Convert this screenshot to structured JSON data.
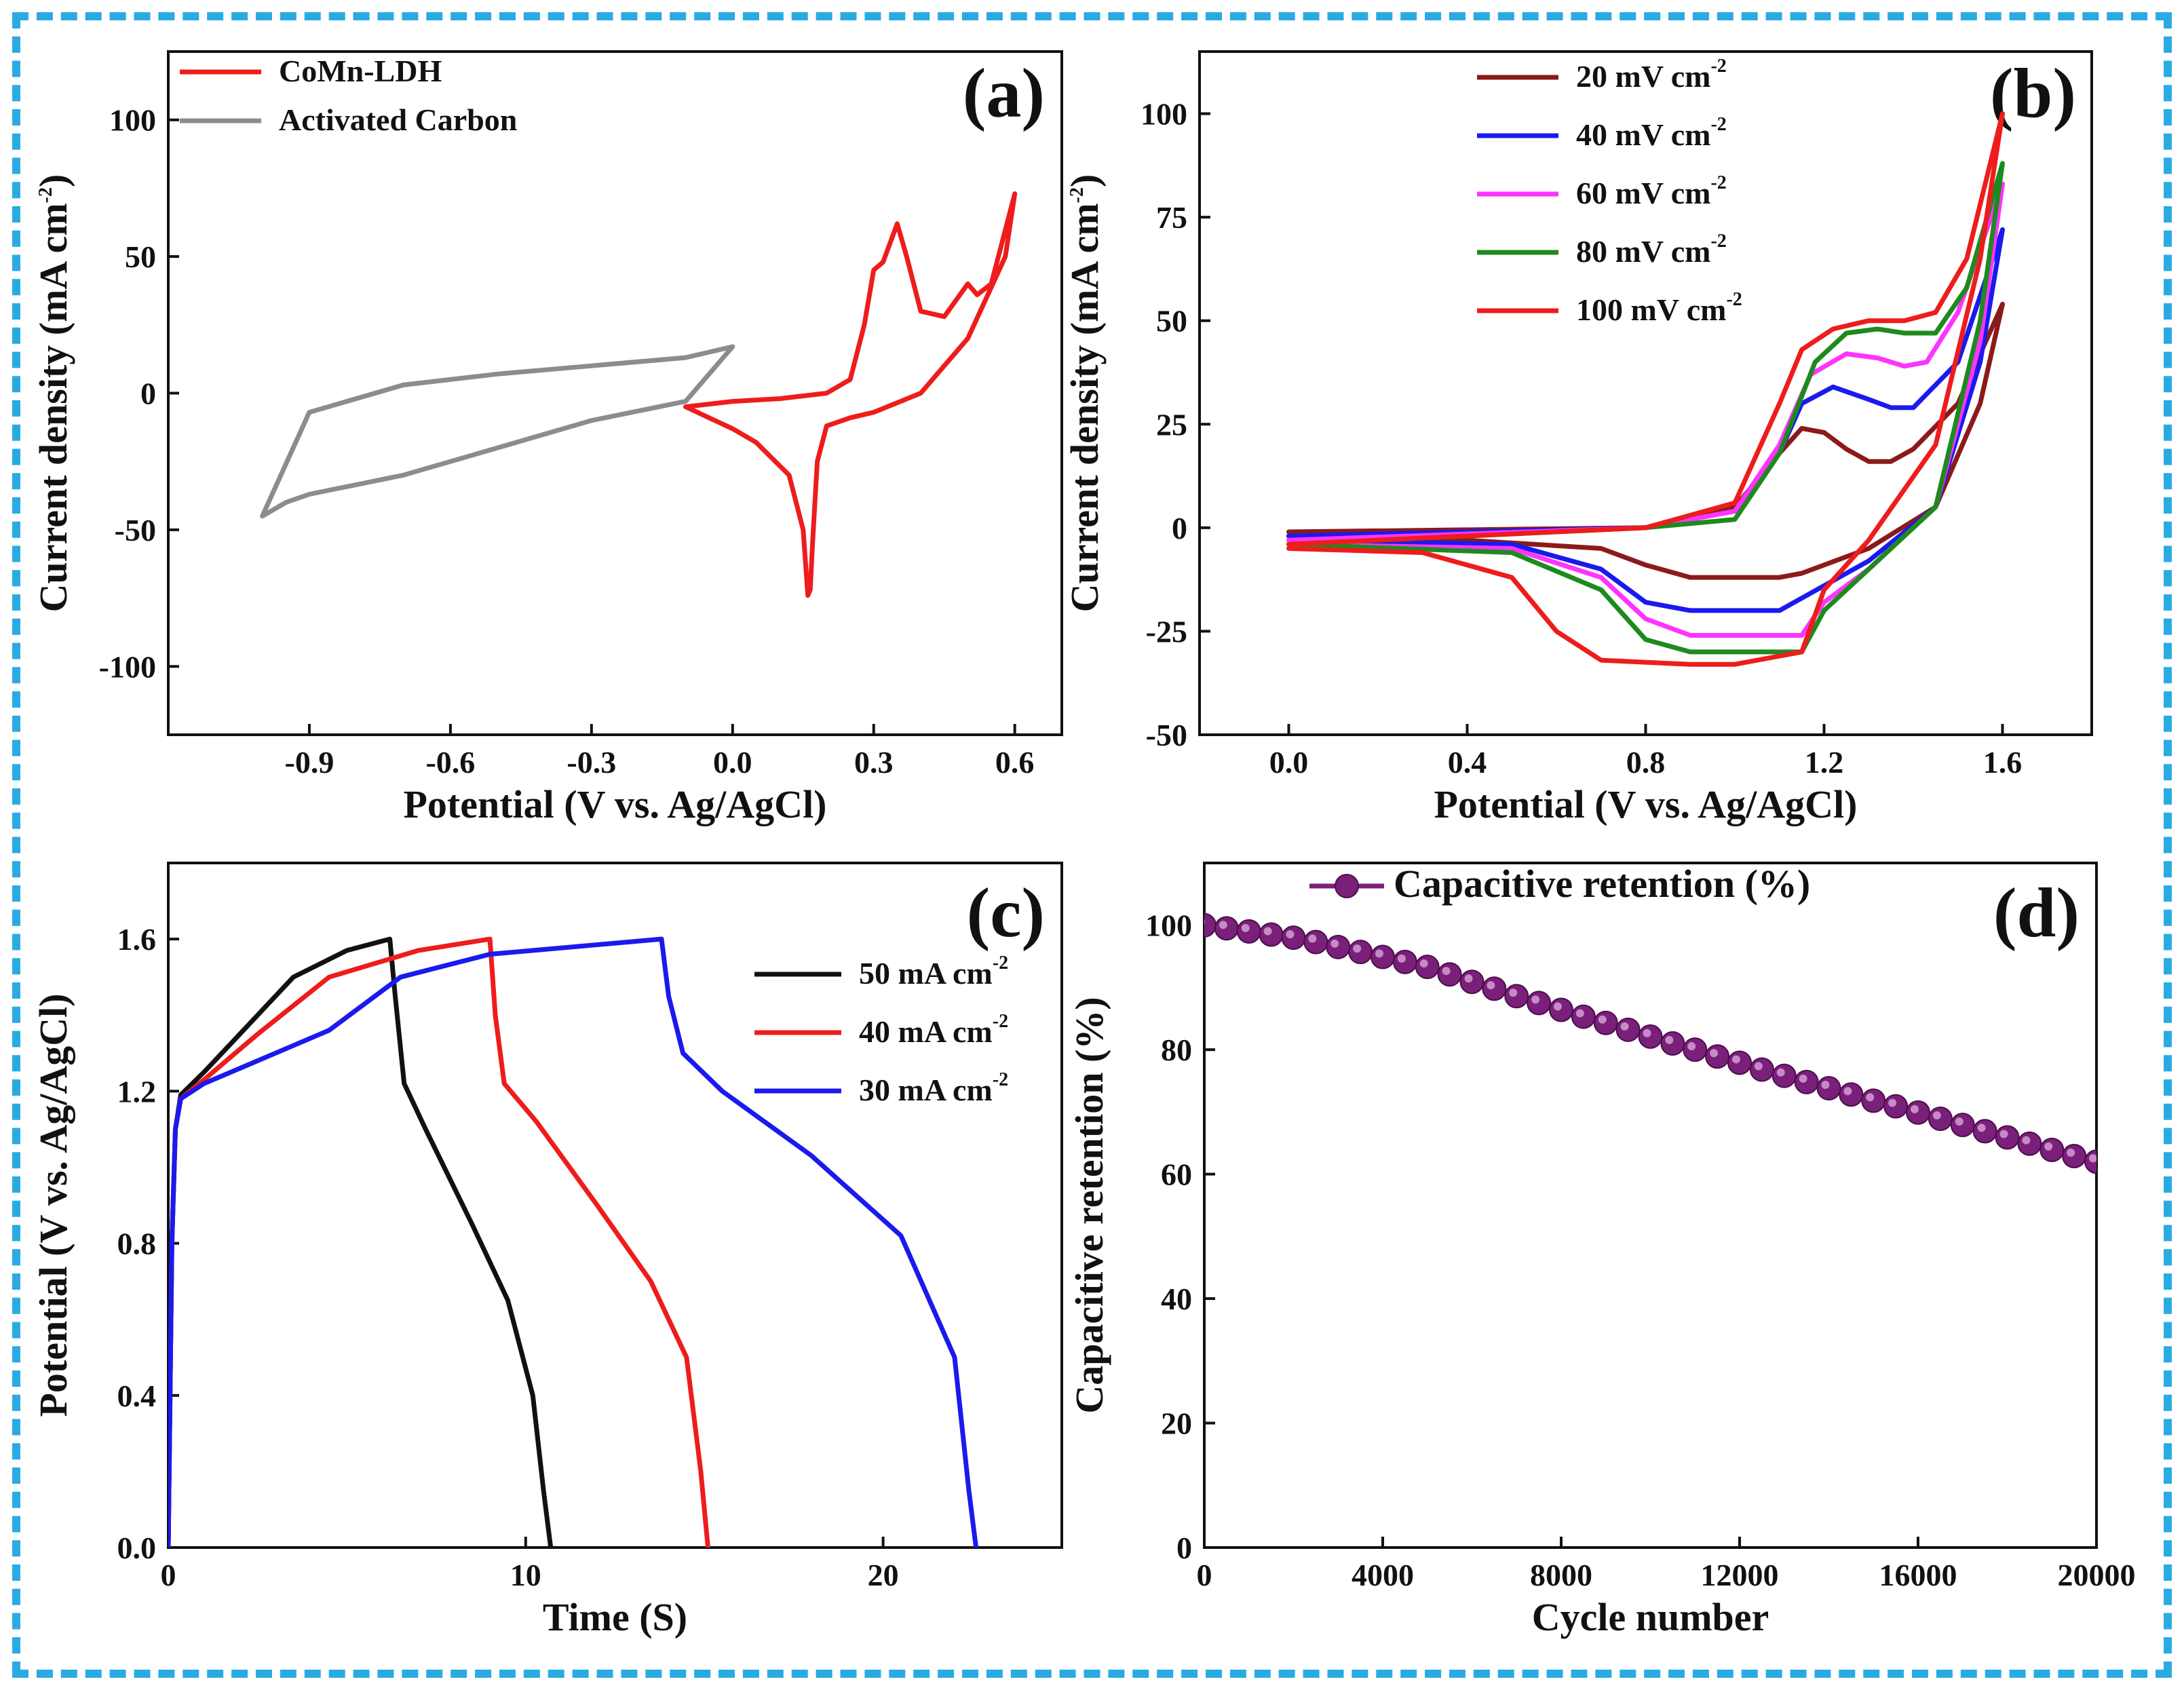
{
  "frame": {
    "border_color": "#29abe2"
  },
  "chart_data": [
    {
      "id": "a",
      "panel_label": "(a)",
      "type": "line",
      "xlabel": "Potential (V vs. Ag/AgCl)",
      "ylabel": "Current density (mA cm",
      "ylabel_sup": "-2",
      "ylabel_close": ")",
      "xlim": [
        -1.2,
        0.7
      ],
      "ylim": [
        -125,
        125
      ],
      "xticks": [
        -0.9,
        -0.6,
        -0.3,
        0.0,
        0.3,
        0.6
      ],
      "xtick_labels": [
        "-0.9",
        "-0.6",
        "-0.3",
        "0.0",
        "0.3",
        "0.6"
      ],
      "yticks": [
        -100,
        -50,
        0,
        50,
        100
      ],
      "ytick_labels": [
        "-100",
        "-50",
        "0",
        "50",
        "100"
      ],
      "legend": [
        {
          "name": "CoMn-LDH",
          "sup": "",
          "color": "#ee1c1c"
        },
        {
          "name": "Activated Carbon",
          "sup": "",
          "color": "#8c8c8c"
        }
      ],
      "series": [
        {
          "name": "CoMn-LDH",
          "color": "#ee1c1c",
          "x": [
            -0.1,
            0.0,
            0.1,
            0.2,
            0.25,
            0.28,
            0.3,
            0.32,
            0.35,
            0.37,
            0.4,
            0.45,
            0.5,
            0.52,
            0.55,
            0.6,
            0.58,
            0.5,
            0.4,
            0.3,
            0.25,
            0.2,
            0.18,
            0.17,
            0.165,
            0.16,
            0.15,
            0.12,
            0.05,
            0.0,
            -0.05,
            -0.1
          ],
          "y": [
            -5,
            -3,
            -2,
            0,
            5,
            25,
            45,
            48,
            62,
            50,
            30,
            28,
            40,
            36,
            40,
            73,
            50,
            20,
            0,
            -7,
            -9,
            -12,
            -25,
            -55,
            -72,
            -74,
            -50,
            -30,
            -18,
            -13,
            -9,
            -5
          ]
        },
        {
          "name": "Activated Carbon",
          "color": "#8c8c8c",
          "x": [
            0.0,
            -0.1,
            -0.3,
            -0.5,
            -0.7,
            -0.9,
            -0.95,
            -1.0,
            -0.9,
            -0.7,
            -0.5,
            -0.3,
            -0.1,
            0.0
          ],
          "y": [
            17,
            -3,
            -10,
            -20,
            -30,
            -37,
            -40,
            -45,
            -7,
            3,
            7,
            10,
            13,
            17
          ]
        }
      ]
    },
    {
      "id": "b",
      "panel_label": "(b)",
      "type": "line",
      "xlabel": "Potential (V vs. Ag/AgCl)",
      "ylabel": "Current density (mA cm",
      "ylabel_sup": "-2",
      "ylabel_close": ")",
      "xlim": [
        -0.2,
        1.8
      ],
      "ylim": [
        -50,
        115
      ],
      "xticks": [
        0.0,
        0.4,
        0.8,
        1.2,
        1.6
      ],
      "xtick_labels": [
        "0.0",
        "0.4",
        "0.8",
        "1.2",
        "1.6"
      ],
      "yticks": [
        -50,
        -25,
        0,
        25,
        50,
        75,
        100
      ],
      "ytick_labels": [
        "-50",
        "-25",
        "0",
        "25",
        "50",
        "75",
        "100"
      ],
      "legend": [
        {
          "name": "20 mV cm",
          "sup": "-2",
          "color": "#8b1a1a"
        },
        {
          "name": "40 mV cm",
          "sup": "-2",
          "color": "#1a1aee"
        },
        {
          "name": "60 mV cm",
          "sup": "-2",
          "color": "#ff33ff"
        },
        {
          "name": "80 mV cm",
          "sup": "-2",
          "color": "#1e8a1e"
        },
        {
          "name": "100 mV cm",
          "sup": "-2",
          "color": "#ee1c1c"
        }
      ],
      "series": [
        {
          "name": "20 mV cm-2",
          "color": "#8b1a1a",
          "x": [
            0,
            0.8,
            1.0,
            1.1,
            1.15,
            1.2,
            1.25,
            1.3,
            1.35,
            1.4,
            1.5,
            1.6,
            1.55,
            1.45,
            1.3,
            1.15,
            1.1,
            1.0,
            0.9,
            0.8,
            0.7,
            0.4,
            0
          ],
          "y": [
            -1,
            0,
            5,
            18,
            24,
            23,
            19,
            16,
            16,
            19,
            30,
            54,
            30,
            5,
            -5,
            -11,
            -12,
            -12,
            -12,
            -9,
            -5,
            -3,
            -2
          ]
        },
        {
          "name": "40 mV cm-2",
          "color": "#1a1aee",
          "x": [
            0,
            0.8,
            1.0,
            1.1,
            1.15,
            1.22,
            1.3,
            1.35,
            1.4,
            1.5,
            1.6,
            1.55,
            1.45,
            1.3,
            1.2,
            1.1,
            1.0,
            0.9,
            0.8,
            0.7,
            0.5,
            0
          ],
          "y": [
            -2,
            0,
            4,
            18,
            30,
            34,
            31,
            29,
            29,
            40,
            72,
            40,
            5,
            -8,
            -14,
            -20,
            -20,
            -20,
            -18,
            -10,
            -4,
            -3
          ]
        },
        {
          "name": "60 mV cm-2",
          "color": "#ff33ff",
          "x": [
            0,
            0.8,
            1.0,
            1.1,
            1.17,
            1.25,
            1.32,
            1.38,
            1.43,
            1.5,
            1.6,
            1.55,
            1.45,
            1.3,
            1.2,
            1.15,
            1.0,
            0.9,
            0.8,
            0.7,
            0.5,
            0
          ],
          "y": [
            -3,
            0,
            4,
            20,
            37,
            42,
            41,
            39,
            40,
            52,
            83,
            45,
            5,
            -10,
            -18,
            -26,
            -26,
            -26,
            -22,
            -12,
            -5,
            -4
          ]
        },
        {
          "name": "80 mV cm-2",
          "color": "#1e8a1e",
          "x": [
            0,
            0.8,
            1.0,
            1.1,
            1.18,
            1.25,
            1.32,
            1.38,
            1.45,
            1.52,
            1.6,
            1.55,
            1.45,
            1.3,
            1.2,
            1.15,
            1.0,
            0.9,
            0.8,
            0.7,
            0.5,
            0
          ],
          "y": [
            -4,
            0,
            2,
            18,
            40,
            47,
            48,
            47,
            47,
            58,
            88,
            50,
            5,
            -10,
            -20,
            -30,
            -30,
            -30,
            -27,
            -15,
            -6,
            -4
          ]
        },
        {
          "name": "100 mV cm-2",
          "color": "#ee1c1c",
          "x": [
            0,
            0.8,
            1.0,
            1.1,
            1.15,
            1.22,
            1.3,
            1.38,
            1.45,
            1.52,
            1.6,
            1.55,
            1.45,
            1.3,
            1.2,
            1.15,
            1.0,
            0.9,
            0.7,
            0.6,
            0.5,
            0.3,
            0
          ],
          "y": [
            -4,
            0,
            6,
            30,
            43,
            48,
            50,
            50,
            52,
            65,
            100,
            65,
            20,
            -3,
            -15,
            -30,
            -33,
            -33,
            -32,
            -25,
            -12,
            -6,
            -5
          ]
        }
      ]
    },
    {
      "id": "c",
      "panel_label": "(c)",
      "type": "line",
      "xlabel": "Time (S)",
      "ylabel": "Potential (V vs. Ag/AgCl)",
      "ylabel_sup": "",
      "ylabel_close": "",
      "xlim": [
        0,
        25
      ],
      "ylim": [
        0,
        1.8
      ],
      "xticks": [
        0,
        10,
        20
      ],
      "xtick_labels": [
        "0",
        "10",
        "20"
      ],
      "yticks": [
        0.0,
        0.4,
        0.8,
        1.2,
        1.6
      ],
      "ytick_labels": [
        "0.0",
        "0.4",
        "0.8",
        "1.2",
        "1.6"
      ],
      "legend": [
        {
          "name": "50 mA cm",
          "sup": "-2",
          "color": "#111111"
        },
        {
          "name": "40 mA cm",
          "sup": "-2",
          "color": "#ee1c1c"
        },
        {
          "name": "30 mA cm",
          "sup": "-2",
          "color": "#1a1aee"
        }
      ],
      "series": [
        {
          "name": "50 mA cm-2",
          "color": "#111111",
          "x": [
            0,
            0.1,
            0.2,
            0.35,
            1.0,
            2.0,
            3.5,
            5.0,
            6.2,
            6.35,
            6.6,
            7.2,
            8.5,
            9.5,
            10.2,
            10.5,
            10.7
          ],
          "y": [
            0,
            0.8,
            1.1,
            1.19,
            1.25,
            1.35,
            1.5,
            1.57,
            1.6,
            1.45,
            1.22,
            1.1,
            0.85,
            0.65,
            0.4,
            0.15,
            0
          ]
        },
        {
          "name": "40 mA cm-2",
          "color": "#ee1c1c",
          "x": [
            0,
            0.1,
            0.2,
            0.35,
            1.0,
            2.5,
            4.5,
            7.0,
            9.0,
            9.15,
            9.4,
            10.3,
            12.0,
            13.5,
            14.5,
            14.9,
            15.1
          ],
          "y": [
            0,
            0.8,
            1.1,
            1.18,
            1.23,
            1.35,
            1.5,
            1.57,
            1.6,
            1.4,
            1.22,
            1.12,
            0.9,
            0.7,
            0.5,
            0.2,
            0
          ]
        },
        {
          "name": "30 mA cm-2",
          "color": "#1a1aee",
          "x": [
            0,
            0.1,
            0.2,
            0.35,
            1.0,
            3.0,
            4.5,
            6.5,
            9.0,
            13.8,
            14.0,
            14.4,
            15.5,
            18.0,
            20.5,
            22.0,
            22.4,
            22.6
          ],
          "y": [
            0,
            0.8,
            1.1,
            1.18,
            1.22,
            1.3,
            1.36,
            1.5,
            1.56,
            1.6,
            1.45,
            1.3,
            1.2,
            1.03,
            0.82,
            0.5,
            0.15,
            0
          ]
        }
      ]
    },
    {
      "id": "d",
      "panel_label": "(d)",
      "type": "scatter",
      "xlabel": "Cycle number",
      "ylabel": "Capacitive retention (%)",
      "ylabel_sup": "",
      "ylabel_close": "",
      "xlim": [
        0,
        20000
      ],
      "ylim": [
        0,
        110
      ],
      "xticks": [
        0,
        4000,
        8000,
        12000,
        16000,
        20000
      ],
      "xtick_labels": [
        "0",
        "4000",
        "8000",
        "12000",
        "16000",
        "20000"
      ],
      "yticks": [
        0,
        20,
        40,
        60,
        80,
        100
      ],
      "ytick_labels": [
        "0",
        "20",
        "40",
        "60",
        "80",
        "100"
      ],
      "legend": [
        {
          "name": "Capacitive retention (%)",
          "sup": "",
          "color": "#7a1f7a"
        }
      ],
      "series": [
        {
          "name": "Capacitive retention (%)",
          "color": "#7a1f7a",
          "x": [
            0,
            500,
            1000,
            1500,
            2000,
            2500,
            3000,
            3500,
            4000,
            4500,
            5000,
            5500,
            6000,
            6500,
            7000,
            7500,
            8000,
            8500,
            9000,
            9500,
            10000,
            10500,
            11000,
            11500,
            12000,
            12500,
            13000,
            13500,
            14000,
            14500,
            15000,
            15500,
            16000,
            16500,
            17000,
            17500,
            18000,
            18500,
            19000,
            19500,
            20000
          ],
          "y": [
            100,
            99.5,
            99.0,
            98.5,
            98.0,
            97.3,
            96.5,
            95.7,
            94.9,
            94.1,
            93.3,
            92.1,
            90.9,
            89.8,
            88.6,
            87.5,
            86.4,
            85.3,
            84.3,
            83.2,
            82.1,
            81.0,
            80.0,
            78.9,
            77.9,
            76.8,
            75.8,
            74.8,
            73.8,
            72.8,
            71.8,
            70.9,
            69.9,
            68.9,
            67.9,
            66.9,
            65.9,
            64.9,
            63.9,
            62.9,
            62.0
          ]
        }
      ]
    }
  ]
}
